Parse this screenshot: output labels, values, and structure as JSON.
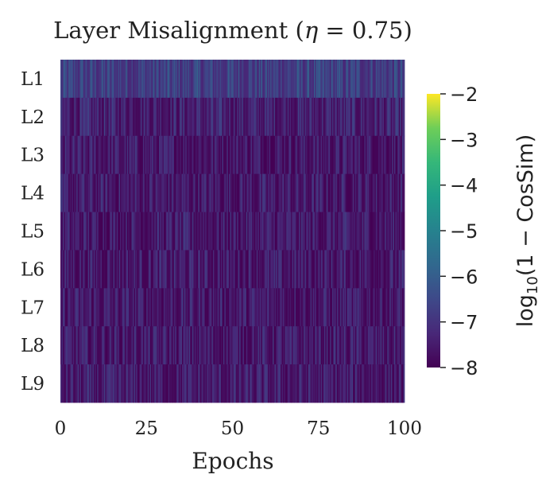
{
  "chart_data": {
    "type": "heatmap",
    "title": "Layer Misalignment (η = 0.75)",
    "title_parts": {
      "before": "Layer Misalignment (",
      "eta": "η",
      "eq": " = 0.75)"
    },
    "xlabel": "Epochs",
    "xlim": [
      0,
      100
    ],
    "xticks": [
      "0",
      "25",
      "50",
      "75",
      "100"
    ],
    "rows": [
      "L1",
      "L2",
      "L3",
      "L4",
      "L5",
      "L6",
      "L7",
      "L8",
      "L9"
    ],
    "row_mean_values": [
      -6.4,
      -7.4,
      -7.6,
      -7.5,
      -7.5,
      -7.5,
      -7.5,
      -7.5,
      -7.5
    ],
    "value_range_per_row": [
      [
        -7.3,
        -5.9
      ],
      [
        -7.9,
        -6.6
      ],
      [
        -8.0,
        -6.8
      ],
      [
        -8.0,
        -6.8
      ],
      [
        -8.0,
        -6.8
      ],
      [
        -8.0,
        -6.8
      ],
      [
        -8.0,
        -6.8
      ],
      [
        -8.0,
        -6.8
      ],
      [
        -8.0,
        -6.8
      ]
    ],
    "colormap": "viridis",
    "colorbar": {
      "range": [
        -8,
        -2
      ],
      "ticks": [
        "−2",
        "−3",
        "−4",
        "−5",
        "−6",
        "−7",
        "−8"
      ],
      "label_parts": {
        "log": "log",
        "sub": "10",
        "rest": "(1 − CosSim)"
      }
    },
    "grid": false
  }
}
